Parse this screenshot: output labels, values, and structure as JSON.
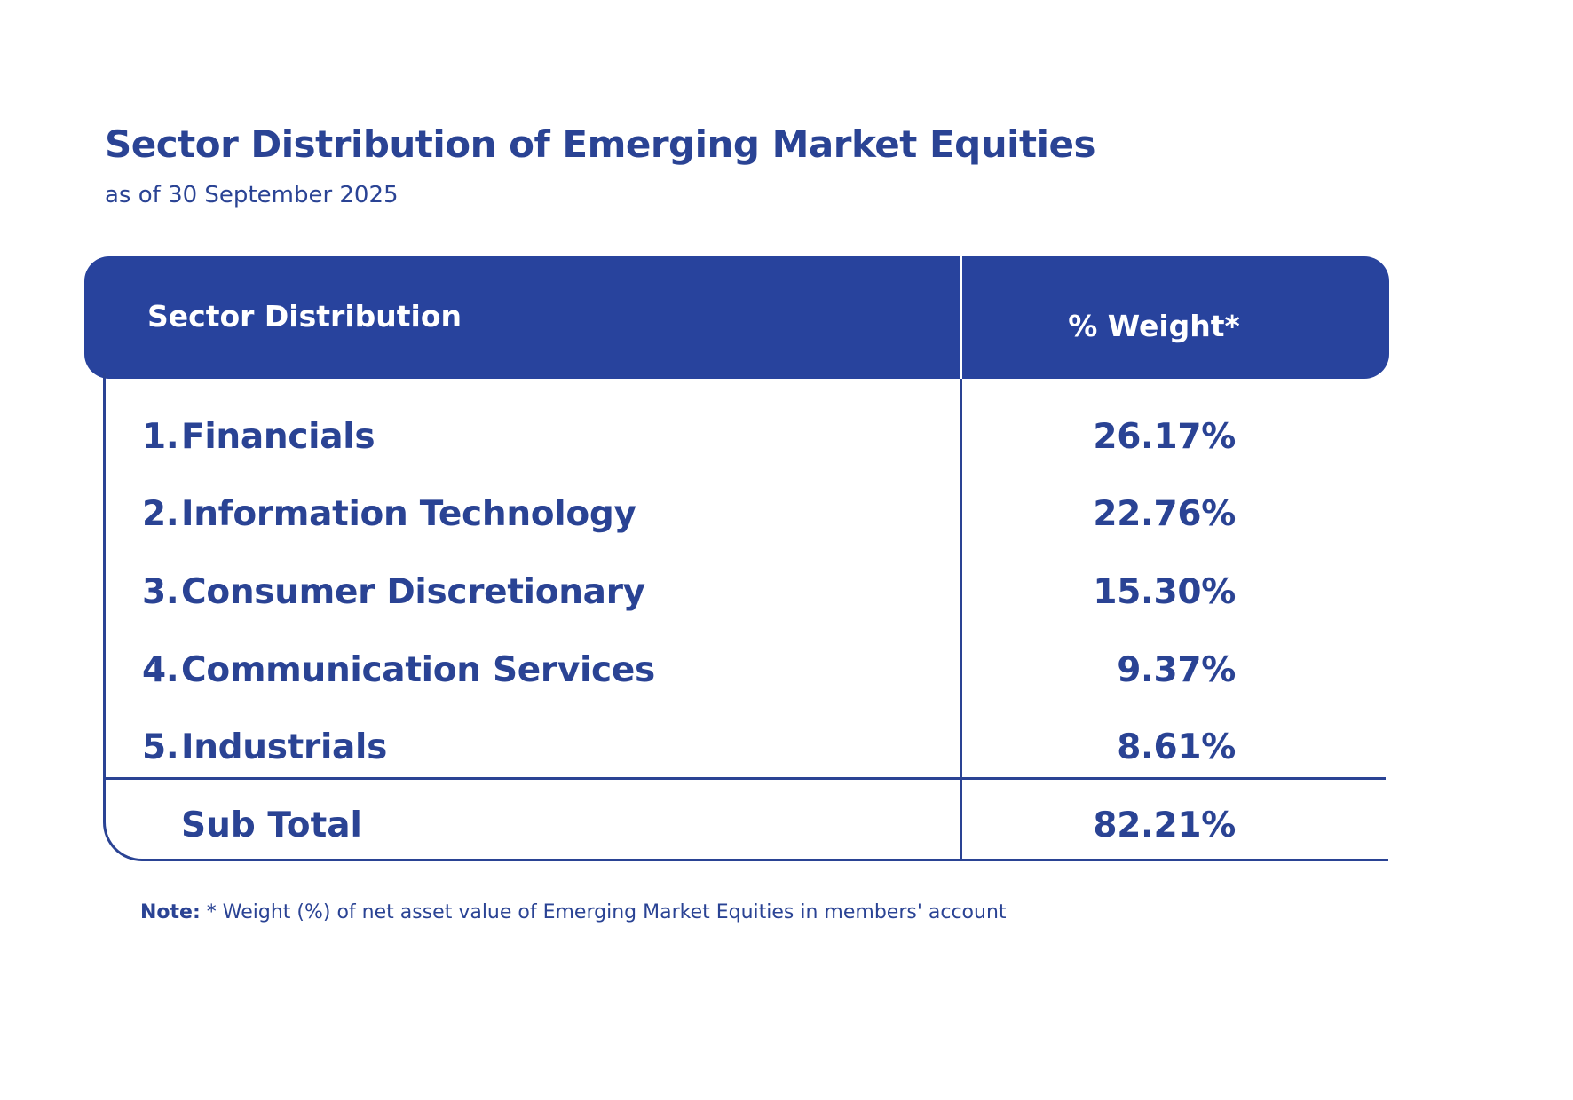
{
  "title": "Sector Distribution of Emerging Market Equities",
  "subtitle": "as of 30 September 2025",
  "table": {
    "header_sector": "Sector Distribution",
    "header_weight": "% Weight*",
    "rows": [
      {
        "num": "1.",
        "label": "Financials",
        "value": "26.17%"
      },
      {
        "num": "2.",
        "label": "Information Technology",
        "value": "22.76%"
      },
      {
        "num": "3.",
        "label": "Consumer Discretionary",
        "value": "15.30%"
      },
      {
        "num": "4.",
        "label": "Communication Services",
        "value": "9.37%"
      },
      {
        "num": "5.",
        "label": "Industrials",
        "value": "8.61%"
      }
    ],
    "subtotal_label": "Sub Total",
    "subtotal_value": "82.21%"
  },
  "note": {
    "label": "Note:",
    "text": "* Weight (%) of net asset value of Emerging Market Equities in members' account"
  },
  "colors": {
    "primary": "#2a4394",
    "header_bg": "#28439d",
    "background": "#ffffff"
  }
}
